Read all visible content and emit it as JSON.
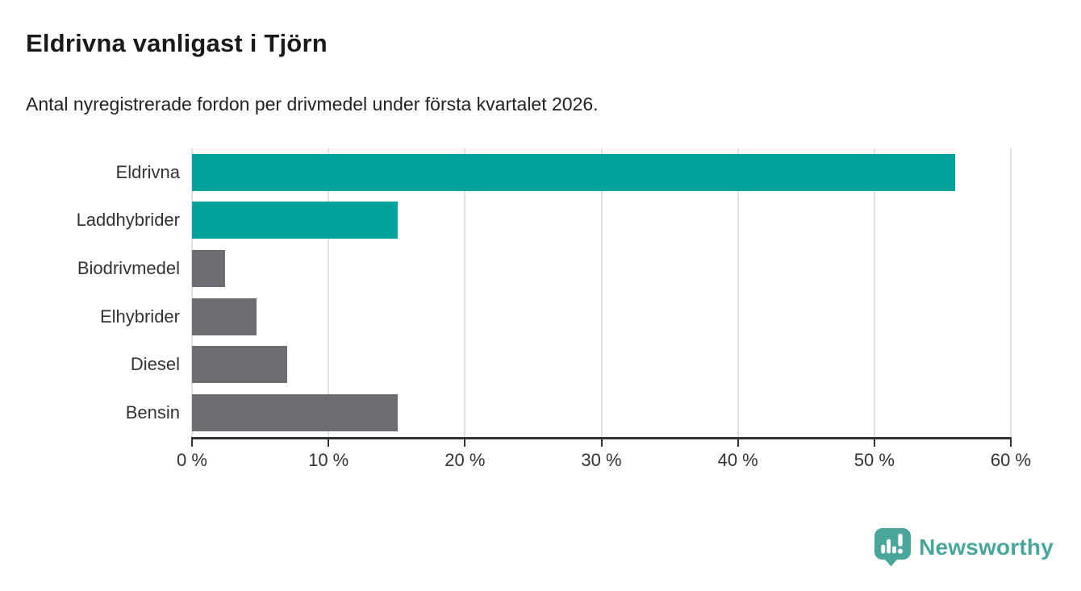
{
  "header": {
    "title": "Eldrivna vanligast i Tjörn",
    "subtitle": "Antal nyregistrerade fordon per drivmedel under första kvartalet 2026."
  },
  "chart_data": {
    "type": "bar",
    "orientation": "horizontal",
    "title": "Eldrivna vanligast i Tjörn",
    "subtitle": "Antal nyregistrerade fordon per drivmedel under första kvartalet 2026.",
    "categories": [
      "Eldrivna",
      "Laddhybrider",
      "Biodrivmedel",
      "Elhybrider",
      "Diesel",
      "Bensin"
    ],
    "values": [
      55.9,
      15.1,
      2.4,
      4.7,
      7.0,
      15.1
    ],
    "unit": "%",
    "xlabel": "",
    "ylabel": "",
    "xlim": [
      0,
      60
    ],
    "xticks": [
      0,
      10,
      20,
      30,
      40,
      50,
      60
    ],
    "xtick_labels": [
      "0 %",
      "10 %",
      "20 %",
      "30 %",
      "40 %",
      "50 %",
      "60 %"
    ],
    "grid": "vertical",
    "legend": "none",
    "bar_colors": [
      "#00a39a",
      "#00a39a",
      "#6c6c72",
      "#6c6c72",
      "#6c6c72",
      "#6c6c72"
    ],
    "colors": {
      "highlight": "#00a39a",
      "default_bar": "#6c6c72",
      "gridline": "#e2e2e2",
      "axis_line": "#333333",
      "tick_text": "#333333",
      "label_text": "#333333"
    }
  },
  "footer": {
    "brand": "Newsworthy",
    "brand_color": "#4aa69b",
    "logo_icon": "newsworthy-bubble-chart-icon"
  }
}
